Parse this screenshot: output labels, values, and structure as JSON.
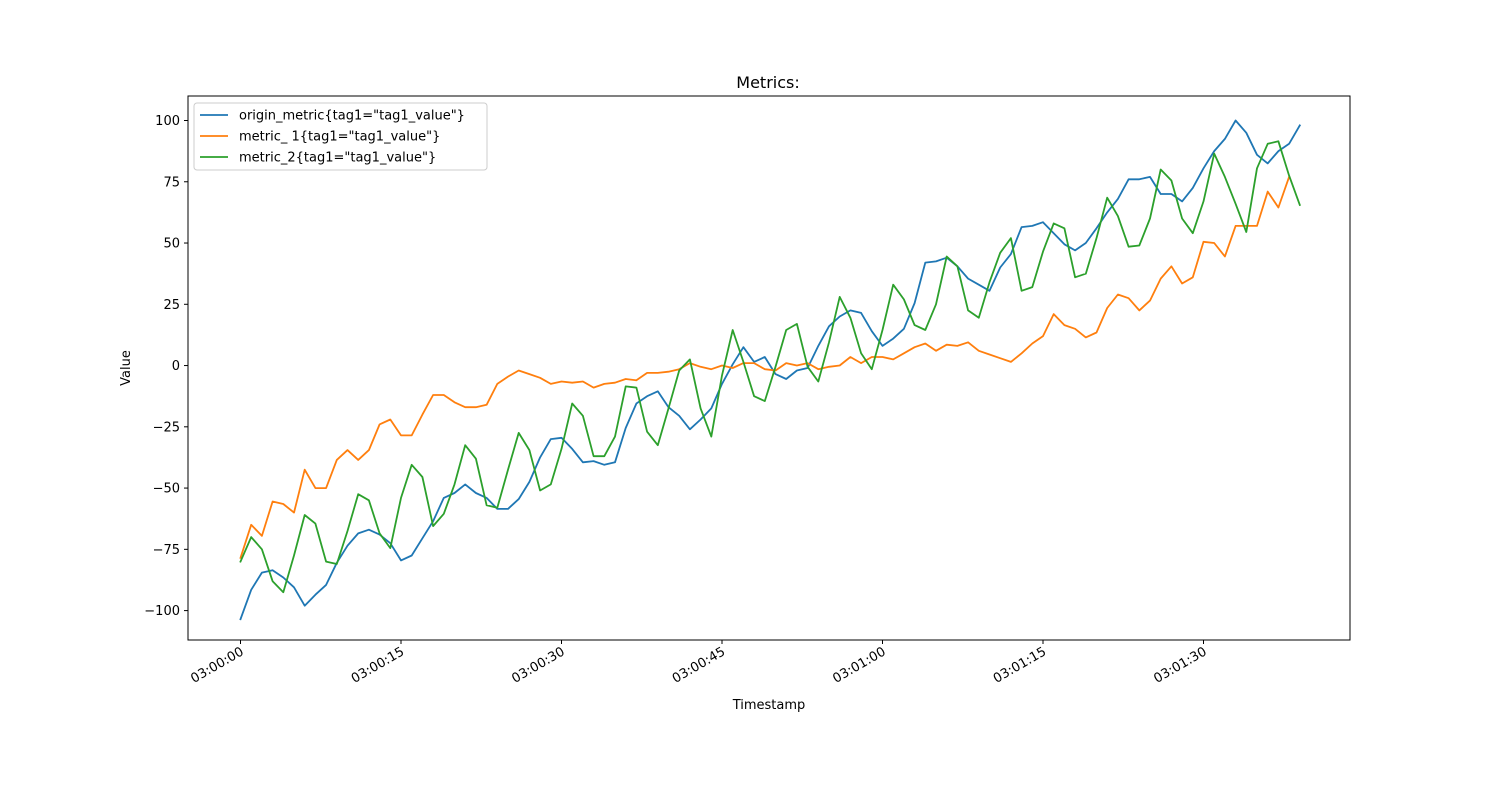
{
  "chart_data": {
    "type": "line",
    "title": "Metrics:",
    "xlabel": "Timestamp",
    "ylabel": "Value",
    "x_start": "03:00:00",
    "x_step_seconds": 1,
    "xticks": [
      "03:00:00",
      "03:00:15",
      "03:00:30",
      "03:00:45",
      "03:01:00",
      "03:01:15",
      "03:01:30"
    ],
    "yticks": [
      -100,
      -75,
      -50,
      -25,
      0,
      25,
      50,
      75,
      100
    ],
    "ylim": [
      -112,
      110
    ],
    "grid": false,
    "legend_position": "top-left",
    "series": [
      {
        "name": "origin_metric{tag1=\"tag1_value\"}",
        "color": "#1f77b4",
        "values": [
          -103.5,
          -91.5,
          -84.5,
          -83.5,
          -86.5,
          -90.5,
          -98,
          -93.5,
          -89.5,
          -80.5,
          -73.5,
          -68.5,
          -67,
          -69,
          -72.5,
          -79.5,
          -77.5,
          -70.5,
          -63.5,
          -54,
          -52,
          -48.5,
          -52,
          -54,
          -58.5,
          -58.5,
          -54.5,
          -47.5,
          -37.5,
          -30,
          -29.5,
          -34,
          -39.5,
          -39,
          -40.5,
          -39.5,
          -25.5,
          -15.5,
          -12.5,
          -10.5,
          -17,
          -20.5,
          -26,
          -22,
          -17.5,
          -7.5,
          0.5,
          7.5,
          1.5,
          3.5,
          -3.5,
          -5.5,
          -2,
          -1,
          8,
          16,
          20,
          22.5,
          21.5,
          14,
          8,
          11,
          15,
          25.5,
          42,
          42.5,
          44,
          40.5,
          35.5,
          33,
          30.5,
          40,
          45.5,
          56.5,
          57,
          58.5,
          54,
          49.5,
          47,
          50,
          56,
          62.5,
          68,
          76,
          76,
          77,
          70,
          70,
          67,
          72.5,
          80.5,
          87.5,
          92.5,
          100,
          95,
          86,
          82.5,
          87.5,
          90.5,
          98
        ]
      },
      {
        "name": "metric_ 1{tag1=\"tag1_value\"}",
        "color": "#ff7f0e",
        "values": [
          -78.5,
          -65,
          -69.5,
          -55.5,
          -56.5,
          -60,
          -42.5,
          -50,
          -50,
          -38.5,
          -34.5,
          -38.5,
          -34.5,
          -24,
          -22,
          -28.5,
          -28.5,
          -20,
          -12,
          -12,
          -15,
          -17,
          -17,
          -16,
          -7.5,
          -4.5,
          -2,
          -3.5,
          -5,
          -7.5,
          -6.5,
          -7,
          -6.5,
          -9,
          -7.5,
          -7,
          -5.5,
          -6,
          -3,
          -3,
          -2.5,
          -1.5,
          1,
          -0.5,
          -1.5,
          0,
          -1,
          1,
          1,
          -1.5,
          -2,
          1,
          0,
          1,
          -1.5,
          -0.5,
          0,
          3.5,
          1,
          3.5,
          3.5,
          2.5,
          5,
          7.5,
          9,
          6,
          8.5,
          8,
          9.5,
          6,
          4.5,
          3,
          1.5,
          5,
          9,
          12,
          21,
          16.5,
          15,
          11.5,
          13.5,
          23.5,
          29,
          27.5,
          22.5,
          26.5,
          35.5,
          40.5,
          33.5,
          36,
          50.5,
          50,
          44.5,
          57,
          57,
          57,
          71,
          64.5,
          77
        ]
      },
      {
        "name": "metric_2{tag1=\"tag1_value\"}",
        "color": "#2ca02c",
        "values": [
          -80,
          -70,
          -75,
          -88,
          -92.5,
          -77.5,
          -61,
          -64.5,
          -80,
          -81,
          -67.5,
          -52.5,
          -55,
          -68.5,
          -74.5,
          -54,
          -40.5,
          -45.5,
          -65.5,
          -60.5,
          -48.5,
          -32.5,
          -38,
          -57,
          -58,
          -42.5,
          -27.5,
          -34.5,
          -51,
          -48.5,
          -34,
          -15.5,
          -20.5,
          -37,
          -37,
          -29,
          -8.5,
          -9,
          -27,
          -32.5,
          -17.5,
          -2,
          2.5,
          -17.5,
          -29,
          -4,
          14.5,
          1.5,
          -12.5,
          -14.5,
          -0.5,
          14.5,
          17,
          -0.5,
          -6.5,
          9.5,
          28,
          19.5,
          5,
          -1.5,
          14.5,
          33,
          27,
          16.5,
          14.5,
          25,
          44.5,
          40.5,
          22.5,
          19.5,
          34,
          46,
          52,
          30.5,
          32,
          46.5,
          58,
          56,
          36,
          37.5,
          52,
          68.5,
          61,
          48.5,
          49,
          60,
          80,
          75.5,
          60,
          54,
          67,
          86.5,
          77,
          66,
          54.5,
          80.5,
          90.5,
          91.5,
          77.5,
          65.5
        ]
      }
    ]
  }
}
